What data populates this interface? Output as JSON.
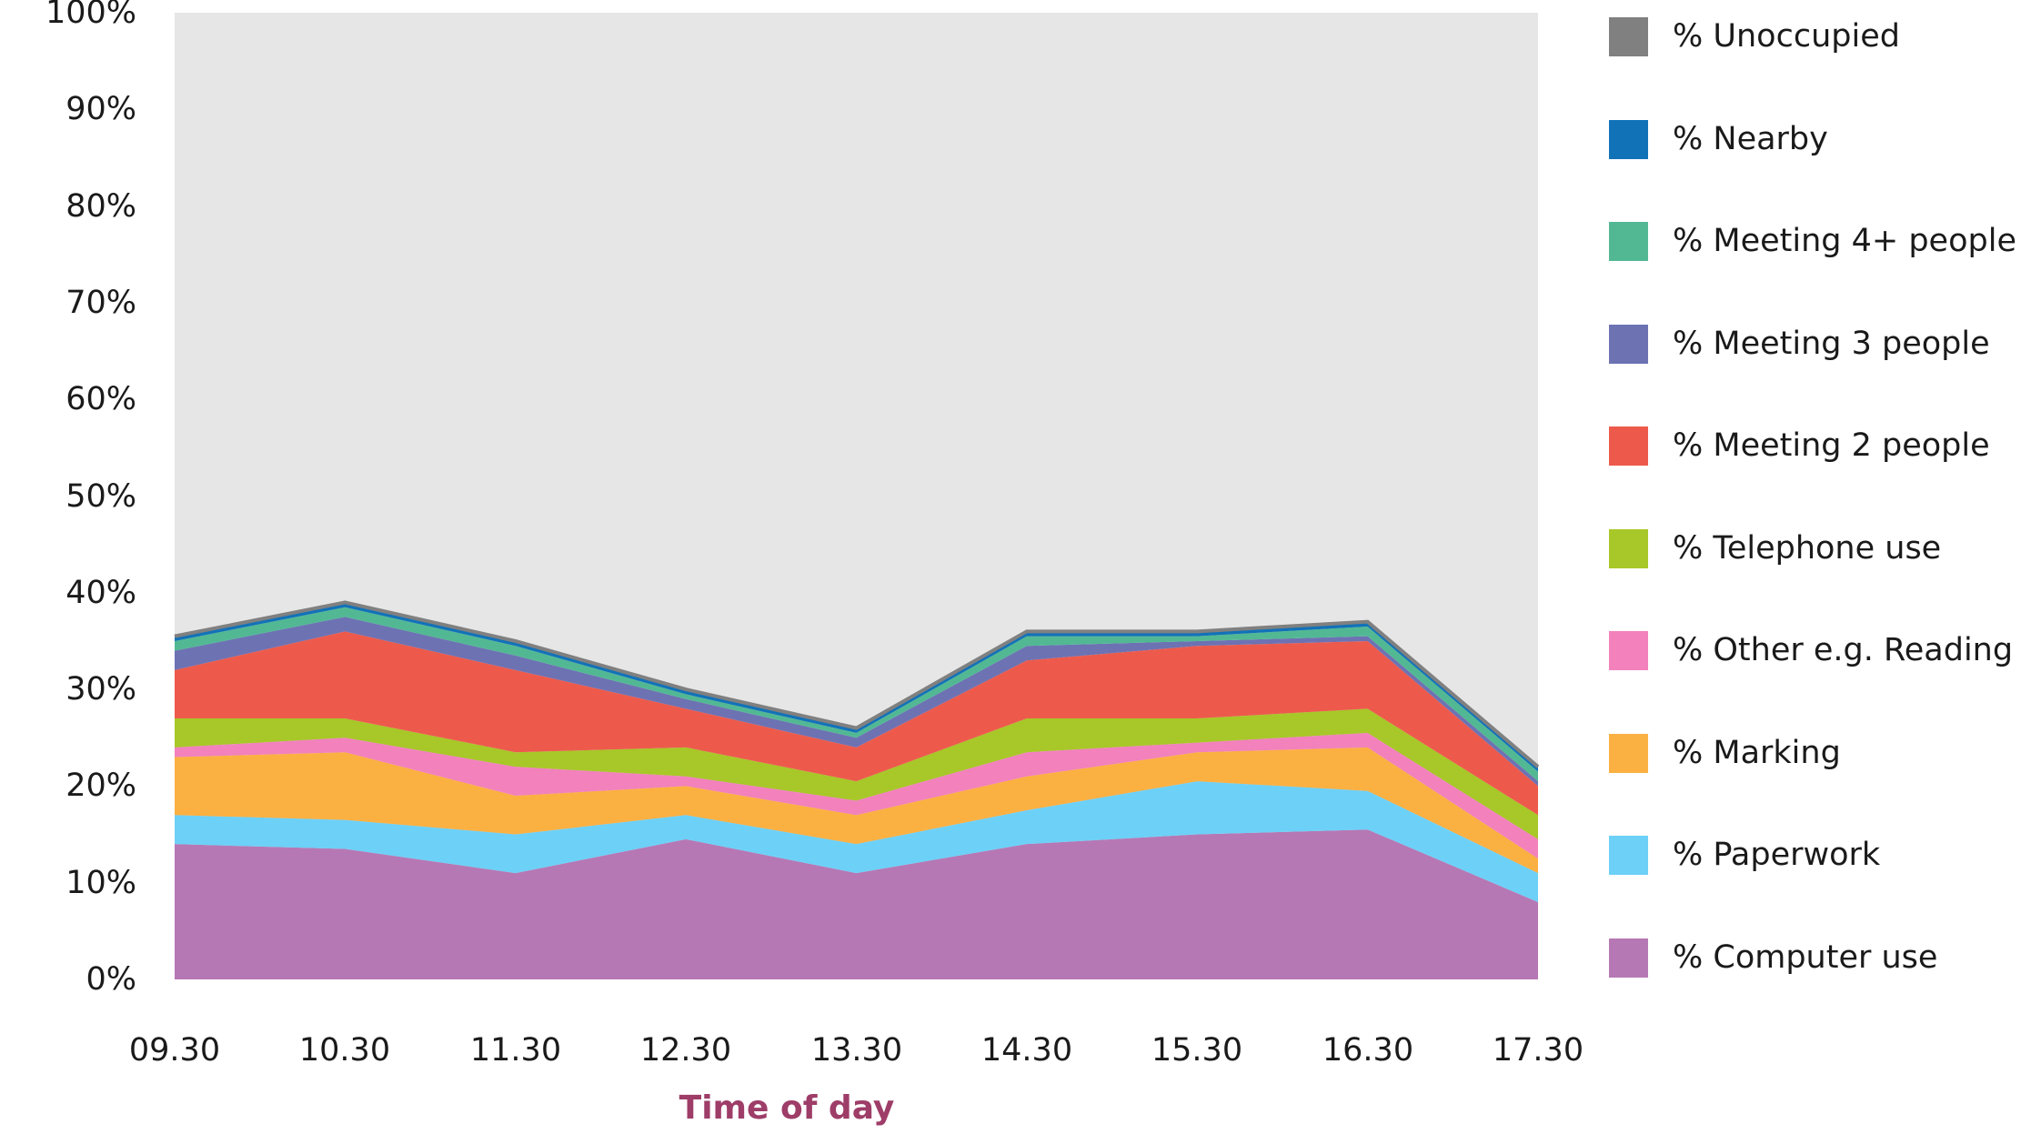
{
  "chart_data": {
    "type": "area",
    "stacking": "percent_of_100",
    "title": "",
    "xlabel": "Time of day",
    "xlabel_color": "#9e3d68",
    "ylabel": "",
    "ylim": [
      0,
      100
    ],
    "grid": false,
    "legend_position": "right",
    "yticks": [
      "0%",
      "10%",
      "20%",
      "30%",
      "40%",
      "50%",
      "60%",
      "70%",
      "80%",
      "90%",
      "100%"
    ],
    "categories": [
      "09.30",
      "10.30",
      "11.30",
      "12.30",
      "13.30",
      "14.30",
      "15.30",
      "16.30",
      "17.30"
    ],
    "series": [
      {
        "name": "% Computer use",
        "color": "#b678b4",
        "values": [
          14,
          13.5,
          11,
          14.5,
          11,
          14,
          15,
          15.5,
          8
        ]
      },
      {
        "name": "% Paperwork",
        "color": "#6dd0f7",
        "values": [
          3,
          3,
          4,
          2.5,
          3,
          3.5,
          5.5,
          4,
          3
        ]
      },
      {
        "name": "% Marking",
        "color": "#fbb042",
        "values": [
          6,
          7,
          4,
          3,
          3,
          3.5,
          3,
          4.5,
          1.5
        ]
      },
      {
        "name": "% Other e.g. Reading",
        "color": "#f281bc",
        "values": [
          1,
          1.5,
          3,
          1,
          1.5,
          2.5,
          1,
          1.5,
          2
        ]
      },
      {
        "name": "% Telephone use",
        "color": "#a8c728",
        "values": [
          3,
          2,
          1.5,
          3,
          2,
          3.5,
          2.5,
          2.5,
          2.5
        ]
      },
      {
        "name": "% Meeting 2 people",
        "color": "#ed5a4c",
        "values": [
          5,
          9,
          8.5,
          4,
          3.5,
          6,
          7.5,
          7,
          3
        ]
      },
      {
        "name": "% Meeting 3 people",
        "color": "#6d72b3",
        "values": [
          2,
          1.5,
          1.5,
          1,
          1,
          1.5,
          0.5,
          0.5,
          0.5
        ]
      },
      {
        "name": "% Meeting 4+ people",
        "color": "#52b894",
        "values": [
          1,
          1,
          1,
          0.5,
          0.5,
          1,
          0.5,
          1,
          1
        ]
      },
      {
        "name": "% Nearby",
        "color": "#1272b8",
        "values": [
          0.5,
          0.5,
          0.5,
          0.5,
          0.5,
          0.5,
          0.5,
          0.5,
          0.5
        ]
      },
      {
        "name": "% Unoccupied",
        "color": "#808080",
        "fill": "#e6e6e6",
        "values": [
          64.5,
          61,
          65,
          70,
          74,
          64,
          64,
          63,
          78
        ]
      }
    ],
    "styles": {
      "unoccupied_area_fill": "#e6e6e6",
      "unoccupied_border_color": "#808080",
      "unoccupied_border_width": 4
    }
  },
  "legend": {
    "items": [
      {
        "label": "% Unoccupied",
        "color": "#808080"
      },
      {
        "label": "% Nearby",
        "color": "#1272b8"
      },
      {
        "label": "% Meeting 4+ people",
        "color": "#52b894"
      },
      {
        "label": "% Meeting 3 people",
        "color": "#6d72b3"
      },
      {
        "label": "% Meeting 2 people",
        "color": "#ed5a4c"
      },
      {
        "label": "% Telephone use",
        "color": "#a8c728"
      },
      {
        "label": "% Other e.g. Reading",
        "color": "#f281bc"
      },
      {
        "label": "% Marking",
        "color": "#fbb042"
      },
      {
        "label": "% Paperwork",
        "color": "#6dd0f7"
      },
      {
        "label": "% Computer use",
        "color": "#b678b4"
      }
    ]
  }
}
